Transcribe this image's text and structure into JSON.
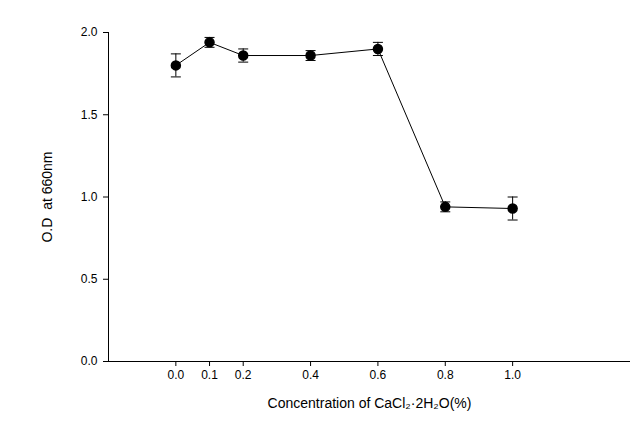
{
  "chart_data": {
    "type": "line",
    "x_label": "Concentration of CaCl₂·2H₂O(%)",
    "y_label": "O.D  at 660nm",
    "x": [
      0.0,
      0.1,
      0.2,
      0.4,
      0.6,
      0.8,
      1.0
    ],
    "values": [
      1.8,
      1.94,
      1.86,
      1.86,
      1.9,
      0.94,
      0.93
    ],
    "error": [
      0.07,
      0.03,
      0.04,
      0.03,
      0.04,
      0.03,
      0.07
    ],
    "color": "#000000",
    "marker": "circle",
    "line_style": "solid",
    "xlim": [
      -0.2,
      1.35
    ],
    "xticks": [
      {
        "value": 0,
        "label": "0.0"
      },
      0.1,
      0.2,
      0.4,
      0.6,
      0.8,
      {
        "value": 1,
        "label": "1.0"
      }
    ],
    "ylim": [
      0,
      2
    ],
    "yticks": [
      {
        "value": 0,
        "label": "0.0"
      },
      0.5,
      {
        "value": 1,
        "label": "1.0"
      },
      1.5,
      {
        "value": 2,
        "label": "2.0"
      }
    ],
    "grid": false
  }
}
